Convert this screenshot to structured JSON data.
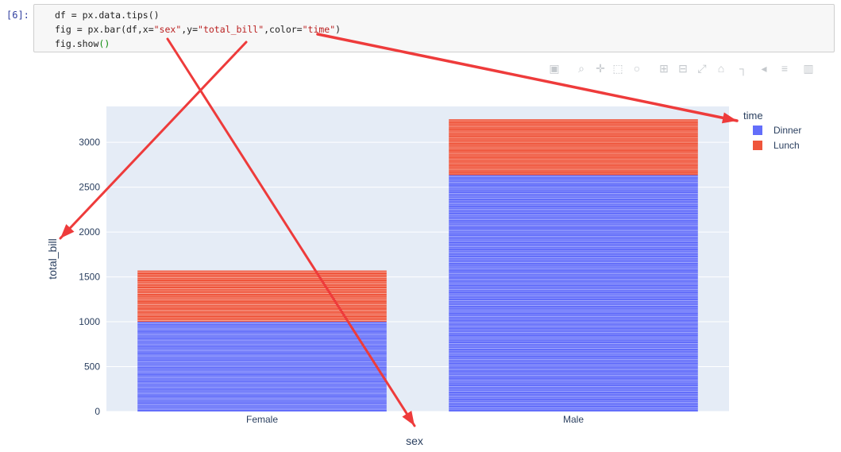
{
  "cell": {
    "prompt": "[6]:",
    "lines": [
      "df = px.data.tips()",
      "fig = px.bar(df,x=\"sex\",y=\"total_bill\",color=\"time\")",
      "fig.show()"
    ]
  },
  "modebar_icons": [
    "camera-icon",
    "zoom-icon",
    "pan-icon",
    "box-select-icon",
    "lasso-select-icon",
    "zoom-in-icon",
    "zoom-out-icon",
    "autoscale-icon",
    "reset-axes-icon",
    "spike-lines-icon",
    "hover-closest-icon",
    "hover-compare-icon",
    "plotly-logo-icon"
  ],
  "colors": {
    "dinner": "#636efa",
    "lunch": "#ef553b",
    "plot_bg": "#e5ecf6",
    "annotation": "#ee3b3b"
  },
  "chart_data": {
    "type": "bar",
    "barmode": "stack",
    "categories": [
      "Female",
      "Male"
    ],
    "series": [
      {
        "name": "Dinner",
        "values": [
          1000,
          2635
        ]
      },
      {
        "name": "Lunch",
        "values": [
          571,
          622
        ]
      }
    ],
    "xlabel": "sex",
    "ylabel": "total_bill",
    "ylim": [
      0,
      3400
    ],
    "yticks": [
      0,
      500,
      1000,
      1500,
      2000,
      2500,
      3000
    ],
    "legend": {
      "title": "time",
      "placement": "top-right"
    },
    "grid": true
  }
}
